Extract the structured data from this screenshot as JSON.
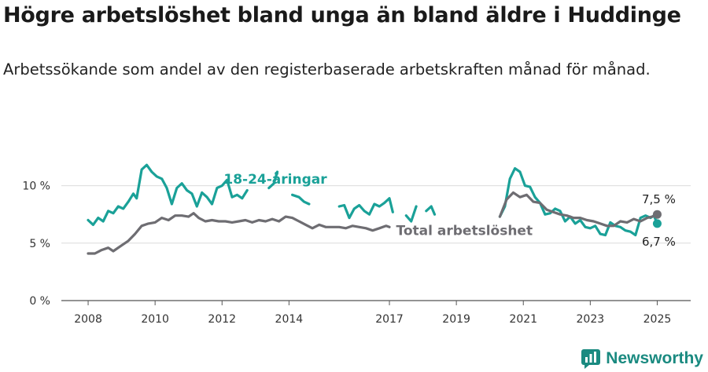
{
  "header": {
    "title": "Högre arbetslöshet bland unga än bland äldre i Huddinge",
    "subtitle": "Arbetssökande som andel av den registerbaserade arbetskraften månad för månad."
  },
  "brand": {
    "name": "Newsworthy",
    "icon": "newsworthy-logo-icon",
    "color": "#1a8a80"
  },
  "chart_data": {
    "type": "line",
    "title": "Högre arbetslöshet bland unga än bland äldre i Huddinge",
    "subtitle": "Arbetssökande som andel av den registerbaserade arbetskraften månad för månad.",
    "xlabel": "",
    "ylabel": "",
    "xlim": [
      2007.2,
      2026.0
    ],
    "ylim": [
      0,
      12.5
    ],
    "x_ticks": [
      {
        "value": 2008,
        "label": "2008"
      },
      {
        "value": 2010,
        "label": "2010"
      },
      {
        "value": 2012,
        "label": "2012"
      },
      {
        "value": 2014,
        "label": "2014"
      },
      {
        "value": 2017,
        "label": "2017"
      },
      {
        "value": 2019,
        "label": "2019"
      },
      {
        "value": 2021,
        "label": "2021"
      },
      {
        "value": 2023,
        "label": "2023"
      },
      {
        "value": 2025,
        "label": "2025"
      }
    ],
    "y_ticks": [
      {
        "value": 0,
        "label": "0 %"
      },
      {
        "value": 5,
        "label": "5 %"
      },
      {
        "value": 10,
        "label": "10 %"
      }
    ],
    "grid": "horizontal",
    "series": [
      {
        "name": "Total arbetslöshet",
        "color": "#6e6d72",
        "end_label": "7,5 %",
        "segments": [
          [
            [
              2008.0,
              4.1
            ],
            [
              2008.2,
              4.1
            ],
            [
              2008.4,
              4.4
            ],
            [
              2008.6,
              4.6
            ],
            [
              2008.75,
              4.3
            ],
            [
              2009.0,
              4.8
            ],
            [
              2009.2,
              5.2
            ],
            [
              2009.4,
              5.8
            ],
            [
              2009.6,
              6.5
            ],
            [
              2009.8,
              6.7
            ],
            [
              2010.0,
              6.8
            ],
            [
              2010.2,
              7.2
            ],
            [
              2010.4,
              7.0
            ],
            [
              2010.6,
              7.4
            ],
            [
              2010.8,
              7.4
            ],
            [
              2011.0,
              7.3
            ],
            [
              2011.15,
              7.6
            ],
            [
              2011.3,
              7.2
            ],
            [
              2011.5,
              6.9
            ],
            [
              2011.7,
              7.0
            ],
            [
              2011.9,
              6.9
            ],
            [
              2012.1,
              6.9
            ],
            [
              2012.3,
              6.8
            ],
            [
              2012.5,
              6.9
            ],
            [
              2012.7,
              7.0
            ],
            [
              2012.9,
              6.8
            ],
            [
              2013.1,
              7.0
            ],
            [
              2013.3,
              6.9
            ],
            [
              2013.5,
              7.1
            ],
            [
              2013.7,
              6.9
            ],
            [
              2013.9,
              7.3
            ],
            [
              2014.1,
              7.2
            ],
            [
              2014.3,
              6.9
            ],
            [
              2014.5,
              6.6
            ],
            [
              2014.7,
              6.3
            ],
            [
              2014.9,
              6.6
            ],
            [
              2015.1,
              6.4
            ],
            [
              2015.3,
              6.4
            ],
            [
              2015.5,
              6.4
            ],
            [
              2015.7,
              6.3
            ],
            [
              2015.9,
              6.5
            ],
            [
              2016.1,
              6.4
            ],
            [
              2016.3,
              6.3
            ],
            [
              2016.5,
              6.1
            ],
            [
              2016.7,
              6.3
            ],
            [
              2016.9,
              6.5
            ],
            [
              2017.0,
              6.4
            ]
          ],
          [
            [
              2020.3,
              7.3
            ],
            [
              2020.5,
              8.8
            ],
            [
              2020.7,
              9.4
            ],
            [
              2020.9,
              9.0
            ],
            [
              2021.1,
              9.2
            ],
            [
              2021.3,
              8.6
            ],
            [
              2021.5,
              8.5
            ],
            [
              2021.7,
              7.9
            ],
            [
              2021.9,
              7.7
            ],
            [
              2022.1,
              7.5
            ],
            [
              2022.3,
              7.4
            ],
            [
              2022.5,
              7.2
            ],
            [
              2022.7,
              7.2
            ],
            [
              2022.9,
              7.0
            ],
            [
              2023.1,
              6.9
            ],
            [
              2023.3,
              6.7
            ],
            [
              2023.5,
              6.5
            ],
            [
              2023.7,
              6.5
            ],
            [
              2023.9,
              6.9
            ],
            [
              2024.1,
              6.8
            ],
            [
              2024.3,
              7.1
            ],
            [
              2024.5,
              6.9
            ],
            [
              2024.7,
              7.2
            ],
            [
              2024.85,
              7.3
            ],
            [
              2025.0,
              7.5
            ]
          ]
        ]
      },
      {
        "name": "18-24-åringar",
        "color": "#1aa198",
        "end_label": "6,7 %",
        "segments": [
          [
            [
              2008.0,
              7.0
            ],
            [
              2008.15,
              6.6
            ],
            [
              2008.3,
              7.2
            ],
            [
              2008.45,
              6.9
            ],
            [
              2008.6,
              7.8
            ],
            [
              2008.75,
              7.6
            ],
            [
              2008.9,
              8.2
            ],
            [
              2009.05,
              8.0
            ],
            [
              2009.2,
              8.6
            ],
            [
              2009.35,
              9.3
            ],
            [
              2009.45,
              8.9
            ],
            [
              2009.6,
              11.4
            ],
            [
              2009.75,
              11.8
            ],
            [
              2009.9,
              11.2
            ],
            [
              2010.05,
              10.8
            ],
            [
              2010.2,
              10.6
            ],
            [
              2010.35,
              9.8
            ],
            [
              2010.5,
              8.4
            ],
            [
              2010.65,
              9.8
            ],
            [
              2010.8,
              10.2
            ],
            [
              2010.95,
              9.6
            ],
            [
              2011.1,
              9.3
            ],
            [
              2011.25,
              8.2
            ],
            [
              2011.4,
              9.4
            ],
            [
              2011.55,
              9.0
            ],
            [
              2011.7,
              8.4
            ],
            [
              2011.85,
              9.8
            ],
            [
              2012.0,
              10.0
            ],
            [
              2012.15,
              10.5
            ],
            [
              2012.3,
              9.0
            ],
            [
              2012.45,
              9.2
            ],
            [
              2012.6,
              8.9
            ],
            [
              2012.75,
              9.6
            ]
          ],
          [
            [
              2013.4,
              9.8
            ],
            [
              2013.55,
              10.2
            ],
            [
              2013.65,
              11.2
            ]
          ],
          [
            [
              2014.1,
              9.2
            ],
            [
              2014.3,
              9.0
            ],
            [
              2014.45,
              8.6
            ],
            [
              2014.6,
              8.4
            ]
          ],
          [
            [
              2015.5,
              8.2
            ],
            [
              2015.65,
              8.3
            ],
            [
              2015.8,
              7.2
            ],
            [
              2015.95,
              8.0
            ],
            [
              2016.1,
              8.3
            ],
            [
              2016.25,
              7.8
            ],
            [
              2016.4,
              7.5
            ],
            [
              2016.55,
              8.4
            ],
            [
              2016.7,
              8.2
            ],
            [
              2016.85,
              8.5
            ],
            [
              2017.0,
              8.9
            ],
            [
              2017.1,
              7.7
            ]
          ],
          [
            [
              2017.5,
              7.4
            ],
            [
              2017.65,
              6.9
            ],
            [
              2017.8,
              8.2
            ]
          ],
          [
            [
              2018.1,
              7.8
            ],
            [
              2018.25,
              8.2
            ],
            [
              2018.35,
              7.5
            ]
          ],
          [
            [
              2020.3,
              7.3
            ],
            [
              2020.45,
              8.2
            ],
            [
              2020.6,
              10.6
            ],
            [
              2020.75,
              11.5
            ],
            [
              2020.9,
              11.2
            ],
            [
              2021.05,
              10.0
            ],
            [
              2021.2,
              9.9
            ],
            [
              2021.35,
              9.0
            ],
            [
              2021.5,
              8.5
            ],
            [
              2021.65,
              7.5
            ],
            [
              2021.8,
              7.6
            ],
            [
              2021.95,
              8.0
            ],
            [
              2022.1,
              7.8
            ],
            [
              2022.25,
              6.9
            ],
            [
              2022.4,
              7.3
            ],
            [
              2022.55,
              6.7
            ],
            [
              2022.7,
              7.0
            ],
            [
              2022.85,
              6.4
            ],
            [
              2023.0,
              6.3
            ],
            [
              2023.15,
              6.5
            ],
            [
              2023.3,
              5.8
            ],
            [
              2023.45,
              5.7
            ],
            [
              2023.6,
              6.8
            ],
            [
              2023.75,
              6.5
            ],
            [
              2023.9,
              6.4
            ],
            [
              2024.05,
              6.1
            ],
            [
              2024.2,
              6.0
            ],
            [
              2024.35,
              5.7
            ],
            [
              2024.5,
              7.2
            ],
            [
              2024.65,
              7.4
            ],
            [
              2024.8,
              7.2
            ],
            [
              2024.9,
              7.4
            ],
            [
              2025.0,
              6.7
            ]
          ]
        ]
      }
    ],
    "annotations": [
      {
        "text": "18-24-åringar",
        "series": "18-24-åringar"
      },
      {
        "text": "Total arbetslöshet",
        "series": "Total arbetslöshet"
      }
    ]
  }
}
